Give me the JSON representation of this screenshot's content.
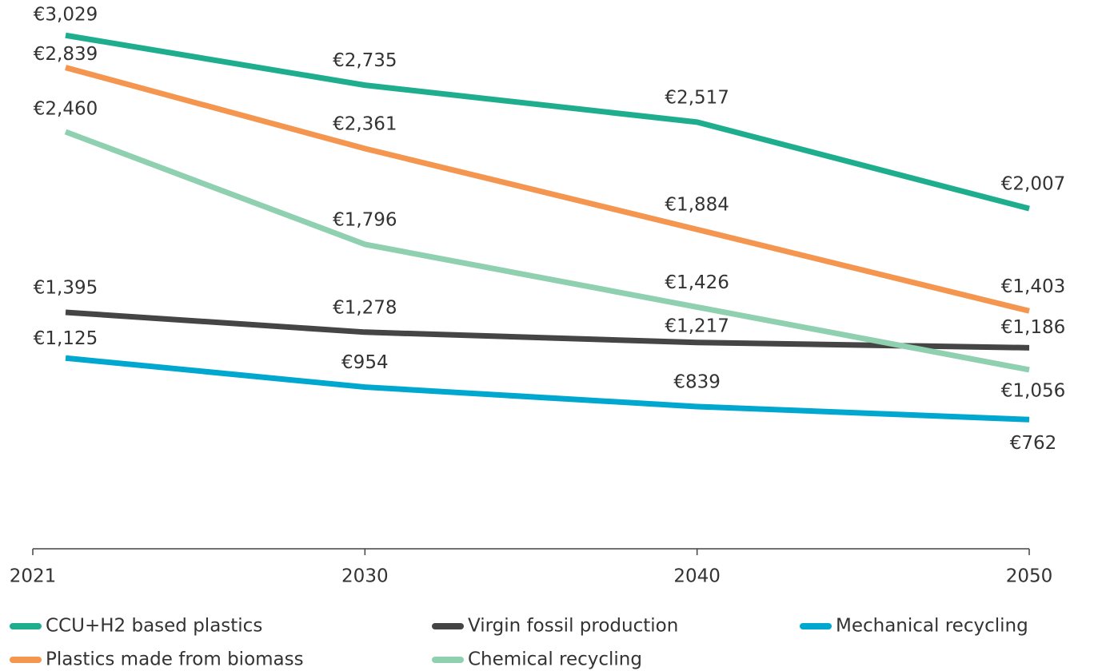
{
  "chart_data": {
    "type": "line",
    "categories": [
      "2021",
      "2030",
      "2040",
      "2050"
    ],
    "series": [
      {
        "name": "CCU+H2 based plastics",
        "color": "#1eae8e",
        "values": [
          3029,
          2735,
          2517,
          2007
        ],
        "value_labels": [
          "€3,029",
          "€2,735",
          "€2,517",
          "€2,007"
        ]
      },
      {
        "name": "Plastics made from biomass",
        "color": "#f4964f",
        "values": [
          2839,
          2361,
          1884,
          1403
        ],
        "value_labels": [
          "€2,839",
          "€2,361",
          "€1,884",
          "€1,403"
        ]
      },
      {
        "name": "Virgin fossil production",
        "color": "#454545",
        "values": [
          1395,
          1278,
          1217,
          1186
        ],
        "value_labels": [
          "€1,395",
          "€1,278",
          "€1,217",
          "€1,186"
        ]
      },
      {
        "name": "Chemical recycling",
        "color": "#8ed0b0",
        "values": [
          2460,
          1796,
          1426,
          1056
        ],
        "value_labels": [
          "€2,460",
          "€1,796",
          "€1,426",
          "€1,056"
        ]
      },
      {
        "name": "Mechanical recycling",
        "color": "#00a8cf",
        "values": [
          1125,
          954,
          839,
          762
        ],
        "value_labels": [
          "€1,125",
          "€954",
          "€839",
          "€762"
        ]
      }
    ]
  }
}
